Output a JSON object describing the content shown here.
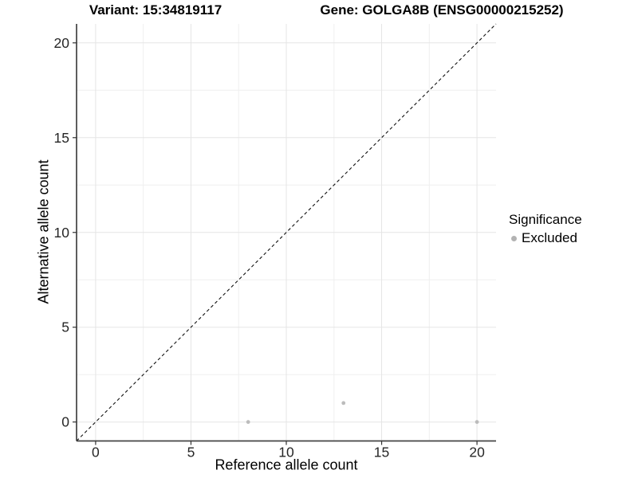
{
  "titles": {
    "variant": "Variant: 15:34819117",
    "gene": "Gene: GOLGA8B (ENSG00000215252)"
  },
  "legend": {
    "title": "Significance",
    "items": [
      {
        "label": "Excluded",
        "color": "#b3b3b3"
      }
    ]
  },
  "chart_data": {
    "type": "scatter",
    "title_left": "Variant: 15:34819117",
    "title_right": "Gene: GOLGA8B (ENSG00000215252)",
    "xlabel": "Reference allele count",
    "ylabel": "Alternative allele count",
    "xlim": [
      -1,
      21
    ],
    "ylim": [
      -1,
      21
    ],
    "x_ticks": [
      0,
      5,
      10,
      15,
      20
    ],
    "y_ticks": [
      0,
      5,
      10,
      15,
      20
    ],
    "grid": {
      "major": [
        0,
        5,
        10,
        15,
        20
      ],
      "minor": [
        2.5,
        7.5,
        12.5,
        17.5
      ],
      "major_color": "#e5e5e5",
      "minor_color": "#efefef"
    },
    "legend_position": "right",
    "series": [
      {
        "name": "Excluded",
        "color": "#bcbcbc",
        "points": [
          {
            "x": 8,
            "y": 0
          },
          {
            "x": 13,
            "y": 1
          },
          {
            "x": 20,
            "y": 0
          }
        ]
      }
    ],
    "identity_line": {
      "style": "dashed",
      "color": "#111111",
      "from": [
        -1,
        -1
      ],
      "to": [
        21,
        21
      ]
    }
  },
  "colors": {
    "background": "#ffffff",
    "axis_line": "#454545",
    "tick_mark": "#333333",
    "tick_label": "#262626",
    "point": "#bcbcbc"
  }
}
